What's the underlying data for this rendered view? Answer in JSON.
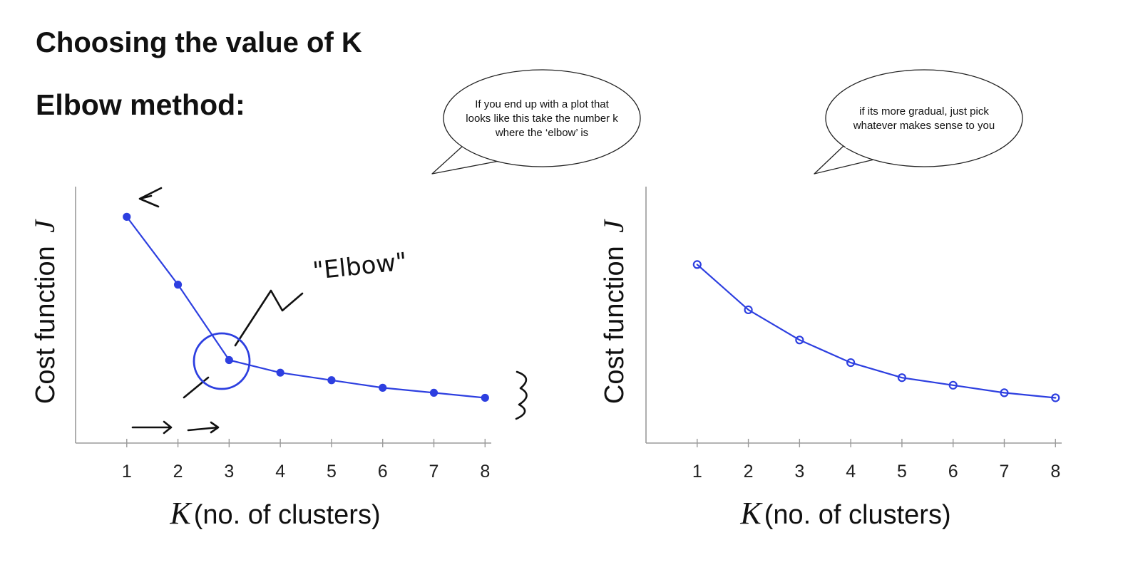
{
  "page": {
    "title": "Choosing the value of K",
    "subtitle": "Elbow method:"
  },
  "callouts": [
    {
      "lines": [
        "If you end up with a plot that",
        "looks like this take the number k",
        "where the ‘elbow’ is"
      ]
    },
    {
      "lines": [
        "if its more gradual, just pick",
        "whatever makes sense to you"
      ]
    }
  ],
  "annotations": {
    "elbow_label": "\"Elbow\""
  },
  "colors": {
    "curve": "#2d3fe0",
    "axis": "#9a9a9a",
    "ink": "#111111"
  },
  "chart_data": [
    {
      "type": "line",
      "x": [
        1,
        2,
        3,
        4,
        5,
        6,
        7,
        8
      ],
      "series": [
        {
          "values": [
            8.8,
            6.1,
            3.1,
            2.6,
            2.3,
            2.0,
            1.8,
            1.6
          ]
        }
      ],
      "xlabel_var": "K",
      "xlabel": "(no. of clusters)",
      "ylabel": "Cost function",
      "ylabel_var": "J",
      "xlim": [
        0,
        8.4
      ],
      "ylim": [
        -0.2,
        10
      ],
      "xticks": [
        "1",
        "2",
        "3",
        "4",
        "5",
        "6",
        "7",
        "8"
      ],
      "grid": false
    },
    {
      "type": "line",
      "x": [
        1,
        2,
        3,
        4,
        5,
        6,
        7,
        8
      ],
      "series": [
        {
          "values": [
            6.9,
            5.1,
            3.9,
            3.0,
            2.4,
            2.1,
            1.8,
            1.6
          ]
        }
      ],
      "xlabel_var": "K",
      "xlabel": "(no. of clusters)",
      "ylabel": "Cost function",
      "ylabel_var": "J",
      "xlim": [
        0,
        8.4
      ],
      "ylim": [
        -0.2,
        10
      ],
      "xticks": [
        "1",
        "2",
        "3",
        "4",
        "5",
        "6",
        "7",
        "8"
      ],
      "grid": false
    }
  ]
}
